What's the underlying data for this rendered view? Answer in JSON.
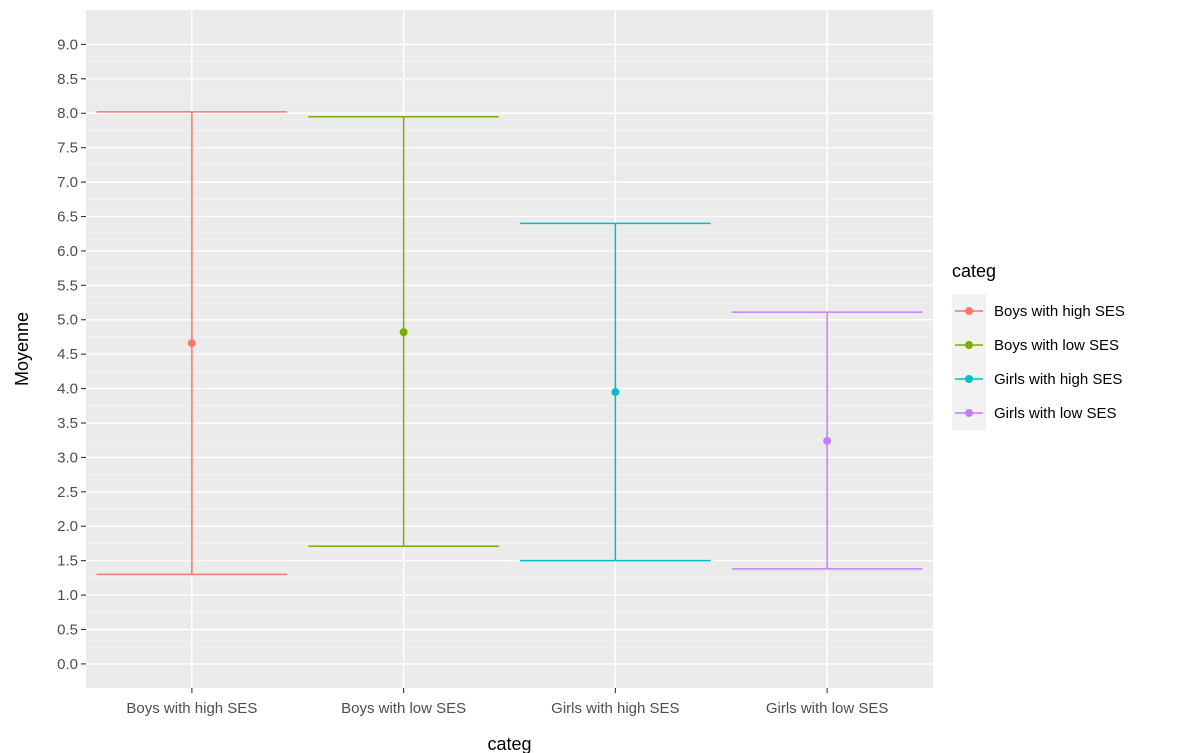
{
  "chart_data": {
    "type": "errorbar",
    "xlabel": "categ",
    "ylabel": "Moyenne",
    "categories": [
      "Boys with high SES",
      "Boys with low SES",
      "Girls with high SES",
      "Girls with low SES"
    ],
    "ylim": [
      -0.35,
      9.5
    ],
    "yticks": [
      "0.0",
      "0.5",
      "1.0",
      "1.5",
      "2.0",
      "2.5",
      "3.0",
      "3.5",
      "4.0",
      "4.5",
      "5.0",
      "5.5",
      "6.0",
      "6.5",
      "7.0",
      "7.5",
      "8.0",
      "8.5",
      "9.0"
    ],
    "grid": true,
    "legend": {
      "title": "categ",
      "position": "right",
      "entries": [
        "Boys with high SES",
        "Boys with low SES",
        "Girls with high SES",
        "Girls with low SES"
      ]
    },
    "series": [
      {
        "name": "Boys with high SES",
        "mean": 4.66,
        "lower": 1.3,
        "upper": 8.02,
        "color": "#F8766D"
      },
      {
        "name": "Boys with low SES",
        "mean": 4.82,
        "lower": 1.71,
        "upper": 7.95,
        "color": "#7CAE00"
      },
      {
        "name": "Girls with high SES",
        "mean": 3.95,
        "lower": 1.5,
        "upper": 6.4,
        "color": "#00BFC4"
      },
      {
        "name": "Girls with low SES",
        "mean": 3.24,
        "lower": 1.38,
        "upper": 5.11,
        "color": "#C77CFF"
      }
    ]
  }
}
